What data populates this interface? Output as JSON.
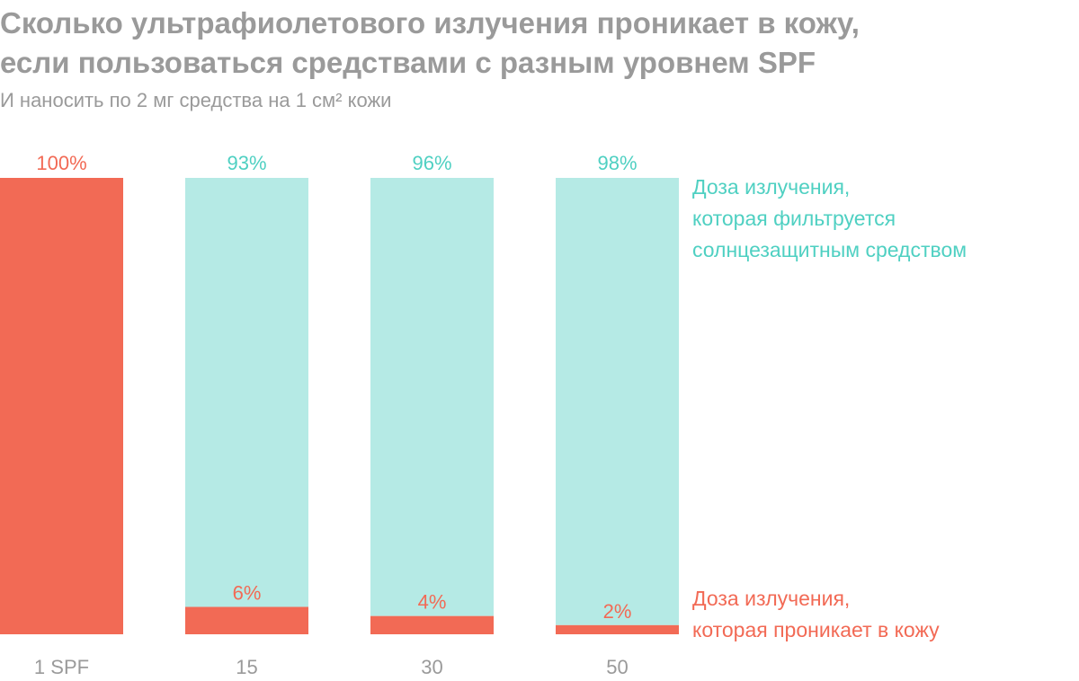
{
  "title_lines": [
    "Сколько ультрафиолетового излучения проникает в кожу,",
    "если пользоваться средствами с разным уровнем SPF"
  ],
  "subtitle": "И наносить по 2 мг средства на 1 см² кожи",
  "legend": {
    "filtered": [
      "Доза излучения,",
      "которая фильтруется",
      "солнцезащитным средством"
    ],
    "penetrating": [
      "Доза излучения,",
      "которая проникает в кожу"
    ]
  },
  "colors": {
    "penetrating": "#f26a55",
    "filtered_bar": "#b5eae5",
    "filtered_text": "#4fd0c2",
    "muted_text": "#9a9a9a"
  },
  "chart_data": {
    "type": "bar",
    "stacked": true,
    "categories": [
      "1 SPF",
      "15",
      "30",
      "50"
    ],
    "ylim": [
      0,
      100
    ],
    "grid": false,
    "series": [
      {
        "name": "Доза излучения, которая проникает в кожу",
        "color": "#f26a55",
        "values": [
          100,
          6,
          4,
          2
        ],
        "labels": [
          "100%",
          "6%",
          "4%",
          "2%"
        ]
      },
      {
        "name": "Доза излучения, которая фильтруется солнцезащитным средством",
        "color": "#b5eae5",
        "values": [
          0,
          93,
          96,
          98
        ],
        "labels": [
          "",
          "93%",
          "96%",
          "98%"
        ]
      }
    ]
  }
}
